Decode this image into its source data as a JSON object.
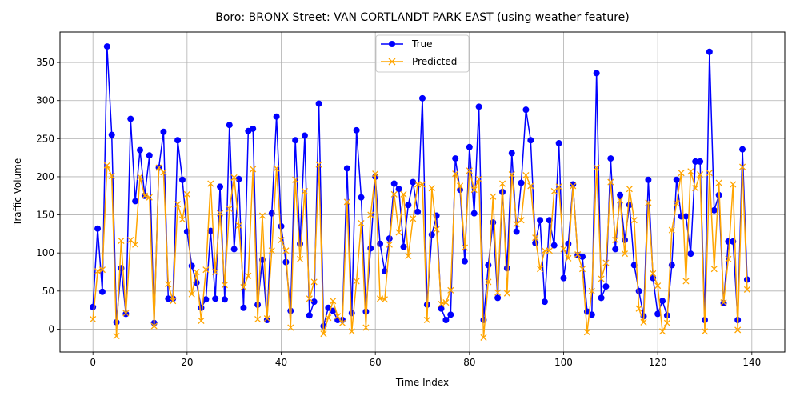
{
  "chart_data": {
    "type": "line",
    "title": "Boro: BRONX Street: VAN CORTLANDT PARK EAST (using weather feature)",
    "xlabel": "Time Index",
    "ylabel": "Traffic Volume",
    "xlim": [
      -7,
      147
    ],
    "ylim": [
      -30,
      390
    ],
    "xticks": [
      0,
      20,
      40,
      60,
      80,
      100,
      120,
      140
    ],
    "yticks": [
      0,
      50,
      100,
      150,
      200,
      250,
      300,
      350
    ],
    "grid": true,
    "legend_position": "upper-center",
    "series": [
      {
        "name": "True",
        "color": "#0000ff",
        "marker": "circle",
        "values": [
          29,
          132,
          49,
          371,
          255,
          9,
          80,
          20,
          276,
          168,
          235,
          175,
          228,
          8,
          212,
          259,
          40,
          40,
          248,
          196,
          128,
          83,
          61,
          28,
          39,
          129,
          40,
          187,
          39,
          268,
          105,
          197,
          28,
          260,
          263,
          32,
          91,
          12,
          152,
          279,
          135,
          88,
          24,
          248,
          112,
          254,
          18,
          36,
          296,
          4,
          28,
          24,
          12,
          12,
          211,
          21,
          261,
          173,
          23,
          106,
          200,
          112,
          76,
          119,
          191,
          184,
          108,
          163,
          193,
          154,
          303,
          32,
          124,
          149,
          27,
          12,
          19,
          224,
          183,
          89,
          239,
          152,
          292,
          12,
          84,
          140,
          41,
          180,
          80,
          231,
          128,
          192,
          288,
          248,
          113,
          143,
          36,
          143,
          110,
          244,
          67,
          112,
          190,
          97,
          95,
          23,
          19,
          336,
          41,
          56,
          224,
          105,
          176,
          117,
          163,
          84,
          50,
          17,
          196,
          67,
          20,
          37,
          18,
          84,
          196,
          148,
          148,
          99,
          220,
          220,
          12,
          364,
          156,
          176,
          34,
          115,
          115,
          12,
          236,
          65
        ]
      },
      {
        "name": "Predicted",
        "color": "#ffa500",
        "marker": "x",
        "values": [
          13,
          76,
          78,
          215,
          201,
          -9,
          116,
          21,
          117,
          111,
          200,
          175,
          173,
          4,
          212,
          206,
          59,
          37,
          164,
          144,
          177,
          46,
          75,
          11,
          78,
          191,
          75,
          152,
          58,
          158,
          199,
          136,
          55,
          70,
          210,
          13,
          149,
          14,
          103,
          211,
          117,
          103,
          2,
          196,
          92,
          181,
          40,
          62,
          216,
          -6,
          15,
          37,
          17,
          8,
          167,
          -3,
          63,
          139,
          2,
          150,
          204,
          40,
          39,
          111,
          177,
          127,
          177,
          96,
          145,
          190,
          190,
          12,
          185,
          131,
          33,
          35,
          51,
          204,
          188,
          107,
          208,
          183,
          197,
          -11,
          62,
          174,
          48,
          191,
          47,
          203,
          138,
          143,
          202,
          188,
          120,
          79,
          103,
          103,
          181,
          187,
          105,
          93,
          188,
          98,
          79,
          -4,
          50,
          212,
          66,
          87,
          193,
          117,
          169,
          99,
          184,
          143,
          27,
          9,
          166,
          73,
          57,
          -3,
          8,
          130,
          165,
          205,
          63,
          207,
          185,
          203,
          -3,
          205,
          79,
          192,
          35,
          92,
          190,
          -1,
          213,
          52
        ]
      }
    ]
  }
}
